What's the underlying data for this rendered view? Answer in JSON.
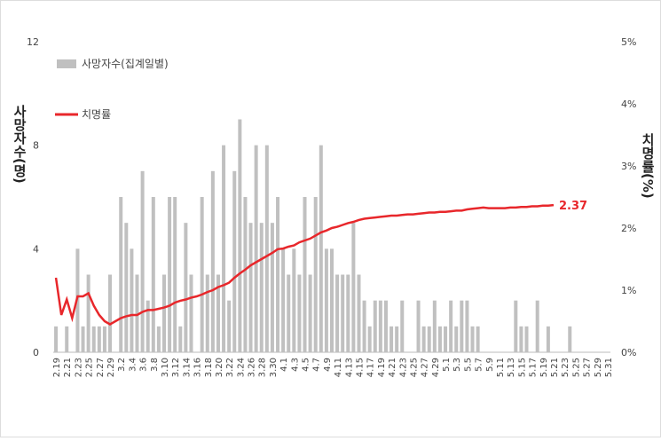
{
  "chart_data": {
    "type": "bar-line",
    "y_label": "사망자수(명)",
    "y2_label": "치명률(%)",
    "categories": [
      "2.19",
      null,
      "2.21",
      null,
      "2.23",
      null,
      "2.25",
      null,
      "2.27",
      null,
      "2.29",
      null,
      "3.2",
      null,
      "3.4",
      null,
      "3.6",
      null,
      "3.8",
      null,
      "3.10",
      null,
      "3.12",
      null,
      "3.14",
      null,
      "3.16",
      null,
      "3.18",
      null,
      "3.20",
      null,
      "3.22",
      null,
      "3.24",
      null,
      "3.26",
      null,
      "3.28",
      null,
      "3.30",
      null,
      "4.1",
      null,
      "4.3",
      null,
      "4.5",
      null,
      "4.7",
      null,
      "4.9",
      null,
      "4.11",
      null,
      "4.13",
      null,
      "4.15",
      null,
      "4.17",
      null,
      "4.19",
      null,
      "4.21",
      null,
      "4.23",
      null,
      "4.25",
      null,
      "4.27",
      null,
      "4.29",
      null,
      "5.1",
      null,
      "5.3",
      null,
      "5.5",
      null,
      "5.7",
      null,
      "5.9",
      null,
      "5.11",
      null,
      "5.13",
      null,
      "5.15",
      null,
      "5.17",
      null,
      "5.19",
      null,
      "5.21",
      null,
      "5.23",
      null,
      "5.25",
      null,
      "5.27",
      null,
      "5.29",
      null,
      "5.31"
    ],
    "series": [
      {
        "name": "사망자수(집계일별)",
        "type": "bar",
        "color": "#c0c0c0",
        "values": [
          1,
          0,
          1,
          0,
          4,
          1,
          3,
          1,
          1,
          1,
          3,
          0,
          6,
          5,
          4,
          3,
          7,
          2,
          6,
          1,
          3,
          6,
          6,
          1,
          5,
          3,
          0,
          6,
          3,
          7,
          3,
          8,
          2,
          7,
          9,
          6,
          5,
          8,
          5,
          8,
          5,
          6,
          4,
          3,
          4,
          3,
          6,
          3,
          6,
          8,
          4,
          4,
          3,
          3,
          3,
          5,
          3,
          2,
          1,
          2,
          2,
          2,
          1,
          1,
          2,
          0,
          0,
          2,
          1,
          1,
          2,
          1,
          1,
          2,
          1,
          2,
          2,
          1,
          1,
          0,
          0,
          0,
          0,
          0,
          0,
          2,
          1,
          1,
          0,
          2,
          0,
          1,
          0,
          0,
          0,
          1,
          0,
          0,
          0,
          0,
          0,
          0,
          0
        ]
      },
      {
        "name": "치명률",
        "type": "line",
        "axis": "y2",
        "color": "#e8272b",
        "values": [
          1.2,
          0.6,
          0.85,
          0.55,
          0.9,
          0.9,
          0.95,
          0.75,
          0.6,
          0.5,
          0.45,
          0.5,
          0.55,
          0.58,
          0.6,
          0.6,
          0.65,
          0.68,
          0.68,
          0.7,
          0.72,
          0.75,
          0.8,
          0.83,
          0.85,
          0.88,
          0.9,
          0.93,
          0.97,
          1.0,
          1.05,
          1.08,
          1.12,
          1.2,
          1.27,
          1.33,
          1.4,
          1.45,
          1.5,
          1.55,
          1.6,
          1.66,
          1.67,
          1.7,
          1.72,
          1.77,
          1.8,
          1.83,
          1.88,
          1.93,
          1.96,
          2.0,
          2.02,
          2.05,
          2.08,
          2.1,
          2.13,
          2.15,
          2.16,
          2.17,
          2.18,
          2.19,
          2.2,
          2.2,
          2.21,
          2.22,
          2.22,
          2.23,
          2.24,
          2.25,
          2.25,
          2.26,
          2.26,
          2.27,
          2.28,
          2.28,
          2.3,
          2.31,
          2.32,
          2.33,
          2.32,
          2.32,
          2.32,
          2.32,
          2.33,
          2.33,
          2.34,
          2.34,
          2.35,
          2.35,
          2.36,
          2.36,
          2.37,
          null,
          null,
          null,
          null,
          null,
          null,
          null,
          null,
          null,
          null
        ]
      }
    ],
    "ylim": [
      0,
      12
    ],
    "yticks": [
      0,
      4,
      8,
      12
    ],
    "y2lim": [
      0,
      5
    ],
    "y2ticks": [
      {
        "value": 0,
        "label": "0%"
      },
      {
        "value": 1,
        "label": "1%"
      },
      {
        "value": 2,
        "label": "2%"
      },
      {
        "value": 3,
        "label": "3%"
      },
      {
        "value": 4,
        "label": "4%"
      },
      {
        "value": 5,
        "label": "5%"
      }
    ],
    "legend": "top-left"
  }
}
